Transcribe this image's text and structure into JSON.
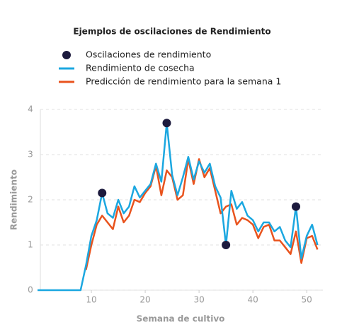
{
  "chart_data": {
    "type": "line",
    "title": "Ejemplos de oscilaciones de Rendimiento",
    "xlabel": "Semana de cultivo",
    "ylabel": "Rendimiento",
    "x": [
      0,
      1,
      2,
      3,
      4,
      5,
      6,
      7,
      8,
      9,
      10,
      11,
      12,
      13,
      14,
      15,
      16,
      17,
      18,
      19,
      20,
      21,
      22,
      23,
      24,
      25,
      26,
      27,
      28,
      29,
      30,
      31,
      32,
      33,
      34,
      35,
      36,
      37,
      38,
      39,
      40,
      41,
      42,
      43,
      44,
      45,
      46,
      47,
      48,
      49,
      50,
      51,
      52
    ],
    "series": [
      {
        "name": "Oscilaciones de rendimiento",
        "type": "scatter",
        "color": "#1c1a3d",
        "x": [
          12,
          24,
          35,
          48
        ],
        "values": [
          2.15,
          3.7,
          1.0,
          1.85
        ]
      },
      {
        "name": "Rendimiento de cosecha",
        "type": "line",
        "color": "#1ba7e0",
        "values": [
          0,
          0,
          0,
          0,
          0,
          0,
          0,
          0,
          0,
          0.55,
          1.2,
          1.55,
          2.15,
          1.7,
          1.6,
          2.0,
          1.7,
          1.85,
          2.3,
          2.05,
          2.2,
          2.35,
          2.8,
          2.4,
          3.7,
          2.55,
          2.1,
          2.5,
          2.95,
          2.45,
          2.85,
          2.6,
          2.8,
          2.3,
          2.05,
          1.0,
          2.2,
          1.8,
          1.95,
          1.65,
          1.55,
          1.3,
          1.5,
          1.5,
          1.3,
          1.4,
          1.1,
          0.95,
          1.85,
          0.7,
          1.2,
          1.45,
          1.0
        ]
      },
      {
        "name": "Predicción de rendimiento para la semana 1",
        "type": "line",
        "color": "#e9531d",
        "values": [
          null,
          null,
          null,
          null,
          null,
          null,
          null,
          null,
          null,
          0.45,
          1.0,
          1.45,
          1.65,
          1.5,
          1.35,
          1.85,
          1.5,
          1.65,
          2.0,
          1.95,
          2.15,
          2.3,
          2.75,
          2.1,
          2.65,
          2.5,
          2.0,
          2.1,
          2.9,
          2.35,
          2.9,
          2.5,
          2.7,
          2.2,
          1.7,
          1.85,
          1.9,
          1.45,
          1.6,
          1.55,
          1.45,
          1.15,
          1.4,
          1.45,
          1.1,
          1.1,
          0.95,
          0.8,
          1.3,
          0.6,
          1.15,
          1.2,
          0.9
        ]
      }
    ],
    "xlim": [
      0,
      53
    ],
    "ylim": [
      0,
      4
    ],
    "xticks": [
      10,
      20,
      30,
      40,
      50
    ],
    "yticks": [
      0,
      1,
      2,
      3,
      4
    ],
    "grid": true
  }
}
